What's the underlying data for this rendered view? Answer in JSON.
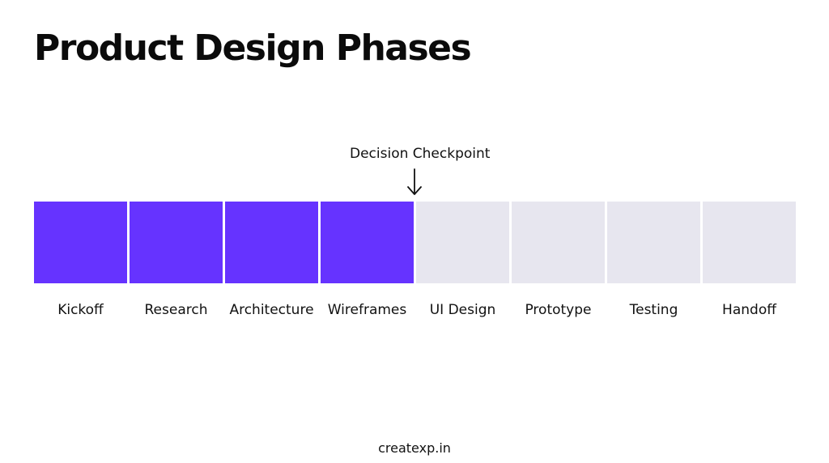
{
  "title": "Product Design Phases",
  "checkpoint": {
    "label": "Decision Checkpoint",
    "arrow_icon": "arrow-down-icon"
  },
  "phases": [
    {
      "label": "Kickoff",
      "status": "done"
    },
    {
      "label": "Research",
      "status": "done"
    },
    {
      "label": "Architecture",
      "status": "done"
    },
    {
      "label": "Wireframes",
      "status": "done"
    },
    {
      "label": "UI Design",
      "status": "todo"
    },
    {
      "label": "Prototype",
      "status": "todo"
    },
    {
      "label": "Testing",
      "status": "todo"
    },
    {
      "label": "Handoff",
      "status": "todo"
    }
  ],
  "footer": "createxp.in",
  "colors": {
    "done": "#6633ff",
    "todo": "#e7e6ef",
    "text": "#111111",
    "background": "#ffffff"
  }
}
